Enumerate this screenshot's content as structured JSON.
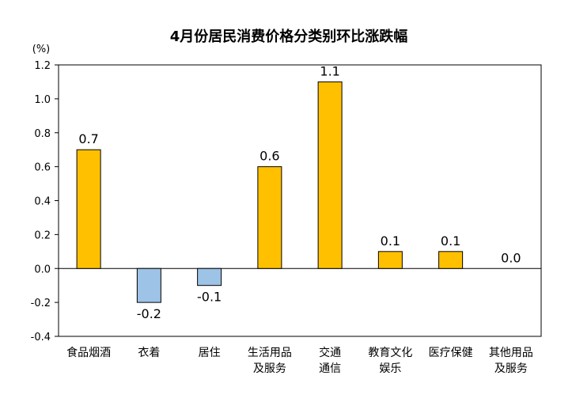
{
  "chart_data": {
    "type": "bar",
    "title": "4月份居民消费价格分类别环比涨跌幅",
    "ylabel": "(%)",
    "xlabel": "",
    "ylim": [
      -0.4,
      1.2
    ],
    "yticks": [
      "1.2",
      "1.0",
      "0.8",
      "0.6",
      "0.4",
      "0.2",
      "0.0",
      "-0.2",
      "-0.4"
    ],
    "categories": [
      [
        "食品烟酒"
      ],
      [
        "衣着"
      ],
      [
        "居住"
      ],
      [
        "生活用品",
        "及服务"
      ],
      [
        "交通",
        "通信"
      ],
      [
        "教育文化",
        "娱乐"
      ],
      [
        "医疗保健"
      ],
      [
        "其他用品",
        "及服务"
      ]
    ],
    "values": [
      0.7,
      -0.2,
      -0.1,
      0.6,
      1.1,
      0.1,
      0.1,
      0.0
    ],
    "value_labels": [
      "0.7",
      "-0.2",
      "-0.1",
      "0.6",
      "1.1",
      "0.1",
      "0.1",
      "0.0"
    ],
    "grid": false,
    "colors": {
      "positive": "#FFC000",
      "negative": "#9DC3E6",
      "bar_border": "#000000"
    }
  }
}
